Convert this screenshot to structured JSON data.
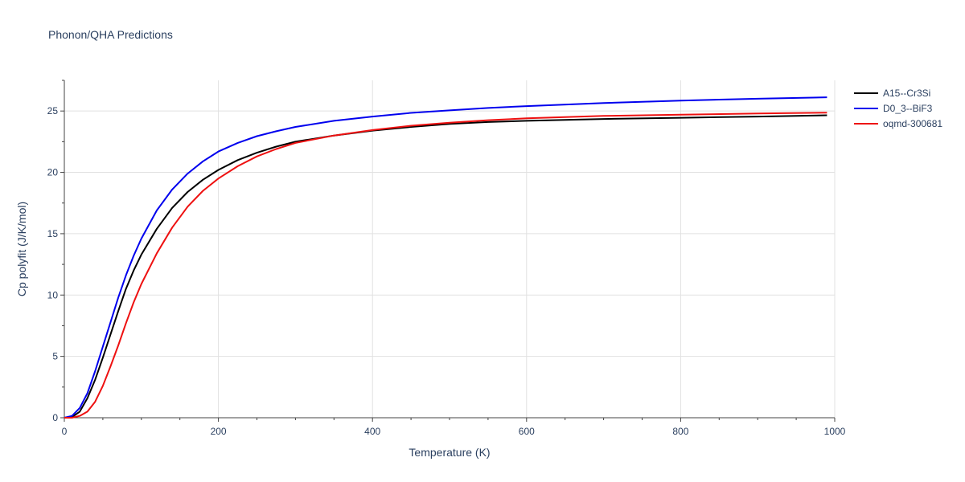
{
  "chart_data": {
    "type": "line",
    "title": "Phonon/QHA Predictions",
    "xlabel": "Temperature (K)",
    "ylabel": "Cp polyfit (J/K/mol)",
    "xlim": [
      0,
      1000
    ],
    "ylim": [
      0,
      27.5
    ],
    "xticks": [
      0,
      200,
      400,
      600,
      800,
      1000
    ],
    "yticks": [
      0,
      5,
      10,
      15,
      20,
      25
    ],
    "grid": true,
    "legend_position": "top-right",
    "series": [
      {
        "name": "A15--Cr3Si",
        "color": "#000000",
        "x": [
          0,
          10,
          20,
          30,
          40,
          50,
          60,
          70,
          80,
          90,
          100,
          120,
          140,
          160,
          180,
          200,
          225,
          250,
          275,
          300,
          350,
          400,
          450,
          500,
          550,
          600,
          700,
          800,
          900,
          990
        ],
        "y": [
          0,
          0.05,
          0.5,
          1.6,
          3.1,
          4.9,
          6.8,
          8.7,
          10.5,
          12.0,
          13.3,
          15.4,
          17.1,
          18.4,
          19.4,
          20.2,
          21.0,
          21.6,
          22.1,
          22.5,
          23.0,
          23.4,
          23.7,
          23.95,
          24.1,
          24.2,
          24.35,
          24.45,
          24.55,
          24.65
        ]
      },
      {
        "name": "D0_3--BiF3",
        "color": "#0000ee",
        "x": [
          0,
          10,
          20,
          30,
          40,
          50,
          60,
          70,
          80,
          90,
          100,
          120,
          140,
          160,
          180,
          200,
          225,
          250,
          275,
          300,
          350,
          400,
          450,
          500,
          550,
          600,
          700,
          800,
          900,
          990
        ],
        "y": [
          0,
          0.15,
          0.8,
          2.0,
          3.8,
          5.8,
          7.8,
          9.8,
          11.6,
          13.2,
          14.6,
          16.9,
          18.6,
          19.9,
          20.9,
          21.7,
          22.4,
          22.95,
          23.35,
          23.7,
          24.2,
          24.55,
          24.85,
          25.05,
          25.25,
          25.4,
          25.65,
          25.85,
          26.0,
          26.12
        ]
      },
      {
        "name": "oqmd-300681",
        "color": "#ee1111",
        "x": [
          0,
          10,
          20,
          30,
          40,
          50,
          60,
          70,
          80,
          90,
          100,
          120,
          140,
          160,
          180,
          200,
          225,
          250,
          275,
          300,
          350,
          400,
          450,
          500,
          550,
          600,
          700,
          800,
          900,
          990
        ],
        "y": [
          0,
          0.0,
          0.15,
          0.5,
          1.3,
          2.6,
          4.2,
          5.9,
          7.7,
          9.4,
          10.9,
          13.4,
          15.5,
          17.2,
          18.5,
          19.5,
          20.5,
          21.3,
          21.9,
          22.4,
          23.0,
          23.45,
          23.8,
          24.05,
          24.25,
          24.4,
          24.6,
          24.7,
          24.8,
          24.87
        ]
      }
    ]
  }
}
